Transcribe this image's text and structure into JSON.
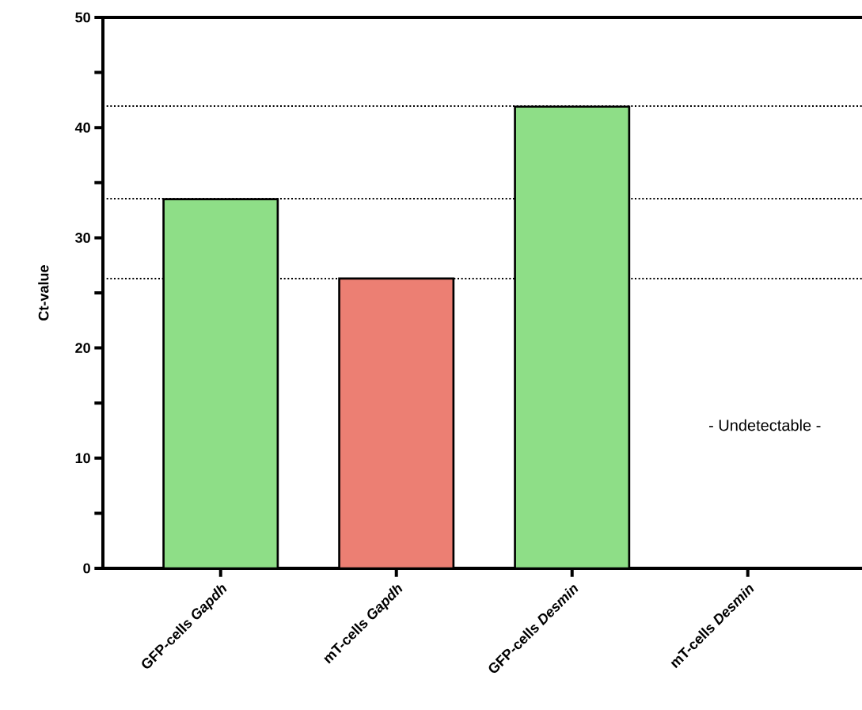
{
  "chart_data": {
    "type": "bar",
    "ylabel": "Ct-value",
    "categories": [
      "GFP-cells *Gapdh*",
      "mT-cells *Gapdh*",
      "GFP-cells *Desmin*",
      "mT-cells *Desmin*"
    ],
    "values": [
      33.5,
      26.3,
      41.9,
      null
    ],
    "colors": [
      "#8ede87",
      "#ec7f73",
      "#8ede87",
      "#ec7f73"
    ],
    "ylim": [
      0,
      50
    ],
    "yticks": [
      0,
      {
        "value": 5,
        "label": null
      },
      10,
      {
        "value": 15,
        "label": null
      },
      20,
      {
        "value": 25,
        "label": null
      },
      30,
      {
        "value": 35,
        "label": null
      },
      40,
      {
        "value": 45,
        "label": null
      },
      50
    ],
    "ref_lines": [
      {
        "axis": "y",
        "value": 41.95,
        "color": "#000000",
        "line_style": "dotted"
      },
      {
        "axis": "y",
        "value": 33.55,
        "color": "#000000",
        "line_style": "dotted"
      },
      {
        "axis": "y",
        "value": 26.3,
        "color": "#000000",
        "line_style": "dotted"
      }
    ],
    "annotations": [
      "- Undetectable -"
    ],
    "grid": false
  }
}
